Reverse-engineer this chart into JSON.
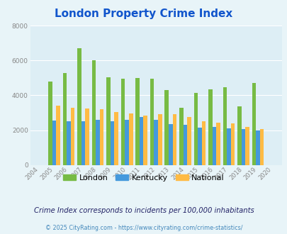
{
  "title": "London Property Crime Index",
  "years": [
    2004,
    2005,
    2006,
    2007,
    2008,
    2009,
    2010,
    2011,
    2012,
    2013,
    2014,
    2015,
    2016,
    2017,
    2018,
    2019,
    2020
  ],
  "london": [
    0,
    4800,
    5300,
    6700,
    6000,
    5050,
    4950,
    5000,
    4950,
    4300,
    3300,
    4150,
    4350,
    4450,
    3350,
    4700,
    0
  ],
  "kentucky": [
    0,
    2550,
    2500,
    2500,
    2600,
    2500,
    2600,
    2750,
    2600,
    2350,
    2300,
    2150,
    2200,
    2100,
    2050,
    2000,
    0
  ],
  "national": [
    0,
    3400,
    3300,
    3250,
    3200,
    3050,
    2950,
    2850,
    2900,
    2900,
    2750,
    2500,
    2450,
    2400,
    2200,
    2050,
    0
  ],
  "london_color": "#77bb44",
  "kentucky_color": "#4499dd",
  "national_color": "#ffbb44",
  "bg_color": "#e8f4f8",
  "plot_bg": "#ddeef5",
  "ylim": [
    0,
    8000
  ],
  "yticks": [
    0,
    2000,
    4000,
    6000,
    8000
  ],
  "subtitle": "Crime Index corresponds to incidents per 100,000 inhabitants",
  "footer": "© 2025 CityRating.com - https://www.cityrating.com/crime-statistics/",
  "legend_labels": [
    "London",
    "Kentucky",
    "National"
  ],
  "title_color": "#1155cc",
  "subtitle_color": "#222266",
  "footer_color": "#4488bb",
  "grid_color": "#ffffff"
}
